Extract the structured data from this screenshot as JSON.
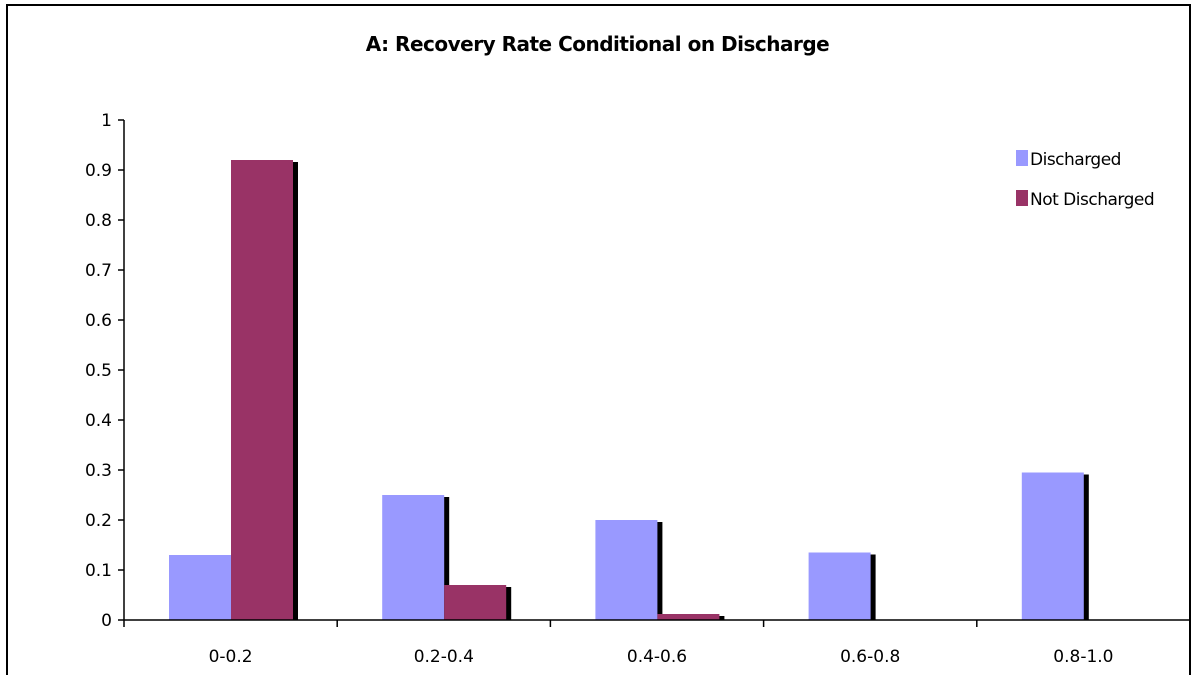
{
  "chart_data": {
    "type": "bar",
    "title": "A: Recovery Rate Conditional on Discharge",
    "xlabel": "",
    "ylabel": "",
    "categories": [
      "0-0.2",
      "0.2-0.4",
      "0.4-0.6",
      "0.6-0.8",
      "0.8-1.0"
    ],
    "series": [
      {
        "name": "Discharged",
        "values": [
          0.13,
          0.25,
          0.2,
          0.135,
          0.295
        ],
        "color": "#9999ff"
      },
      {
        "name": "Not Discharged",
        "values": [
          0.92,
          0.07,
          0.012,
          0,
          0
        ],
        "color": "#993366"
      }
    ],
    "ylim": [
      0,
      1
    ],
    "yticks": [
      "0",
      "0.1",
      "0.2",
      "0.3",
      "0.4",
      "0.5",
      "0.6",
      "0.7",
      "0.8",
      "0.9",
      "1"
    ],
    "grid": false,
    "legend_position": "top-right"
  }
}
